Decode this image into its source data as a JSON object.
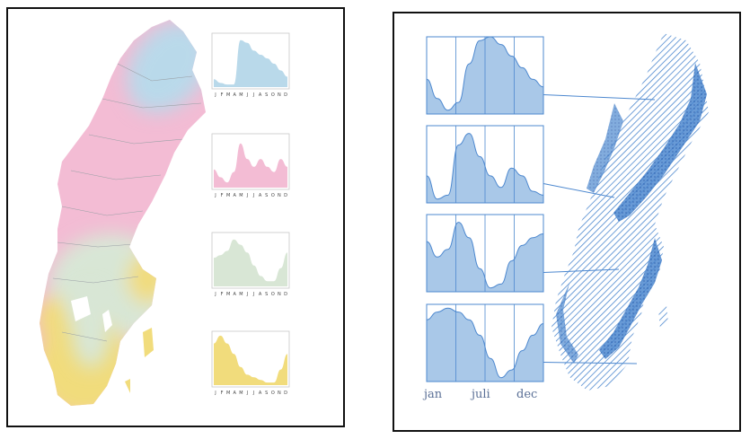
{
  "left_figure": {
    "colors": {
      "blue": "#b9d9ea",
      "pink": "#f3bcd4",
      "green": "#d8e6d5",
      "yellow": "#f1dc7c"
    },
    "month_ticks": [
      "J",
      "F",
      "M",
      "A",
      "M",
      "J",
      "J",
      "A",
      "S",
      "O",
      "N",
      "D"
    ],
    "charts": [
      {
        "zone": "blue",
        "values": [
          0.15,
          0.08,
          0.05,
          0.05,
          0.9,
          0.85,
          0.7,
          0.62,
          0.55,
          0.45,
          0.32,
          0.2
        ]
      },
      {
        "zone": "pink",
        "values": [
          0.35,
          0.2,
          0.1,
          0.3,
          0.85,
          0.55,
          0.4,
          0.55,
          0.4,
          0.3,
          0.55,
          0.4
        ]
      },
      {
        "zone": "green",
        "values": [
          0.55,
          0.6,
          0.68,
          0.9,
          0.8,
          0.65,
          0.4,
          0.2,
          0.1,
          0.1,
          0.35,
          0.65
        ]
      },
      {
        "zone": "yellow",
        "values": [
          0.8,
          0.95,
          0.8,
          0.6,
          0.35,
          0.2,
          0.15,
          0.1,
          0.05,
          0.05,
          0.3,
          0.6
        ]
      }
    ]
  },
  "right_figure": {
    "color": "#4d88cf",
    "fill": "#a9c8e8",
    "x_labels": [
      "jan",
      "juli",
      "dec"
    ],
    "charts": [
      {
        "values": [
          0.45,
          0.2,
          0.05,
          0.15,
          0.65,
          0.95,
          1.0,
          0.9,
          0.75,
          0.6,
          0.45,
          0.35
        ]
      },
      {
        "values": [
          0.35,
          0.05,
          0.1,
          0.75,
          0.9,
          0.6,
          0.35,
          0.2,
          0.45,
          0.35,
          0.15,
          0.1
        ]
      },
      {
        "values": [
          0.65,
          0.45,
          0.55,
          0.9,
          0.7,
          0.3,
          0.05,
          0.1,
          0.4,
          0.6,
          0.7,
          0.75
        ]
      },
      {
        "values": [
          0.8,
          0.9,
          0.95,
          0.9,
          0.8,
          0.6,
          0.3,
          0.05,
          0.15,
          0.4,
          0.6,
          0.75
        ]
      }
    ]
  }
}
